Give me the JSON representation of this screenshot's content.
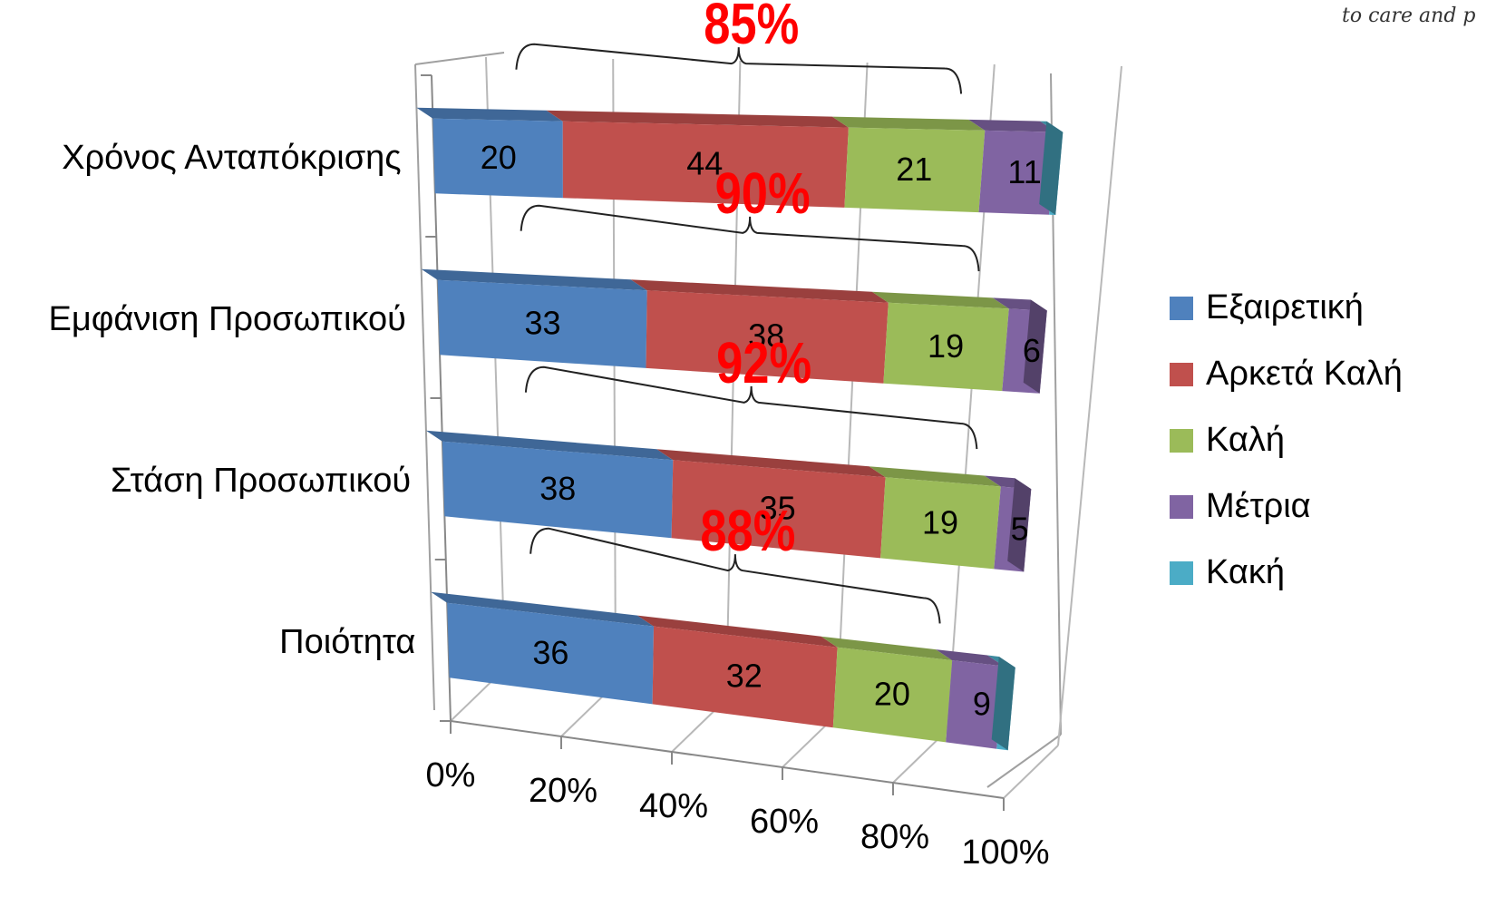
{
  "corner_text": "to care and p",
  "chart_data": {
    "type": "bar",
    "orientation": "horizontal",
    "stacked": "percent",
    "style": "3d",
    "categories": [
      "Χρόνος Ανταπόκρισης",
      "Εμφάνιση Προσωπικού",
      "Στάση Προσωπικού",
      "Ποιότητα"
    ],
    "series": [
      {
        "name": "Εξαιρετική",
        "color": "#4f81bd",
        "values": [
          20,
          33,
          38,
          36
        ]
      },
      {
        "name": "Αρκετά Καλή",
        "color": "#c0504d",
        "values": [
          44,
          38,
          35,
          32
        ]
      },
      {
        "name": "Καλή",
        "color": "#9bbb59",
        "values": [
          21,
          19,
          19,
          20
        ]
      },
      {
        "name": "Μέτρια",
        "color": "#8064a2",
        "values": [
          11,
          6,
          5,
          9
        ]
      },
      {
        "name": "Κακή",
        "color": "#4bacc6",
        "values": [
          1,
          0,
          0,
          2
        ]
      }
    ],
    "data_labels": [
      [
        "20",
        "44",
        "21",
        "11",
        ""
      ],
      [
        "33",
        "38",
        "19",
        "6",
        ""
      ],
      [
        "38",
        "35",
        "19",
        "5",
        ""
      ],
      [
        "36",
        "32",
        "20",
        "9",
        ""
      ]
    ],
    "xticks": [
      "0%",
      "20%",
      "40%",
      "60%",
      "80%",
      "100%"
    ],
    "xlim": [
      0,
      100
    ],
    "grid": true,
    "legend": "right",
    "annotations": [
      {
        "category": "Χρόνος Ανταπόκρισης",
        "text": "85%",
        "span": [
          0,
          85
        ]
      },
      {
        "category": "Εμφάνιση Προσωπικού",
        "text": "90%",
        "span": [
          0,
          90
        ]
      },
      {
        "category": "Στάση Προσωπικού",
        "text": "92%",
        "span": [
          0,
          92
        ]
      },
      {
        "category": "Ποιότητα",
        "text": "88%",
        "span": [
          0,
          88
        ]
      }
    ]
  }
}
